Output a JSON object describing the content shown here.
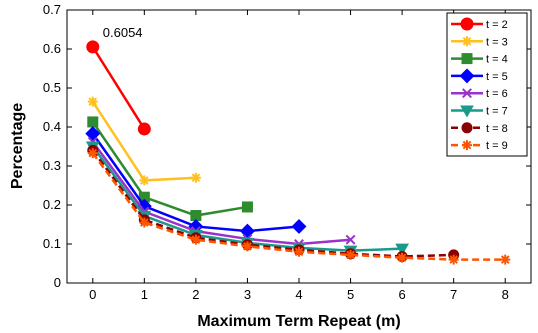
{
  "chart_data": {
    "type": "line",
    "xlabel": "Maximum Term Repeat (m)",
    "ylabel": "Percentage",
    "xlim": [
      -0.5,
      8.5
    ],
    "ylim": [
      0,
      0.7
    ],
    "xticks": [
      0,
      1,
      2,
      3,
      4,
      5,
      6,
      7,
      8
    ],
    "yticks": [
      0,
      0.1,
      0.2,
      0.3,
      0.4,
      0.5,
      0.6,
      0.7
    ],
    "xtick_labels": [
      "0",
      "1",
      "2",
      "3",
      "4",
      "5",
      "6",
      "7",
      "8"
    ],
    "ytick_labels": [
      "0",
      "0.1",
      "0.2",
      "0.3",
      "0.4",
      "0.5",
      "0.6",
      "0.7"
    ],
    "grid": false,
    "legend_position": "top-right",
    "annotation": {
      "text": "0.6054",
      "x": 0,
      "y": 0.6054
    },
    "series": [
      {
        "name": "t = 2",
        "color": "#ff0000",
        "marker": "circle",
        "dash": false,
        "x": [
          0,
          1
        ],
        "y": [
          0.6054,
          0.395
        ]
      },
      {
        "name": "t = 3",
        "color": "#ffc020",
        "marker": "asterisk",
        "dash": false,
        "x": [
          0,
          1,
          2
        ],
        "y": [
          0.465,
          0.263,
          0.27
        ]
      },
      {
        "name": "t = 4",
        "color": "#2e8b2e",
        "marker": "square",
        "dash": false,
        "x": [
          0,
          1,
          2,
          3
        ],
        "y": [
          0.413,
          0.22,
          0.173,
          0.195
        ]
      },
      {
        "name": "t = 5",
        "color": "#0000ff",
        "marker": "diamond",
        "dash": false,
        "x": [
          0,
          1,
          2,
          3,
          4
        ],
        "y": [
          0.383,
          0.197,
          0.145,
          0.133,
          0.145
        ]
      },
      {
        "name": "t = 6",
        "color": "#9933cc",
        "marker": "x",
        "dash": false,
        "x": [
          0,
          1,
          2,
          3,
          4,
          5
        ],
        "y": [
          0.362,
          0.183,
          0.133,
          0.113,
          0.1,
          0.111
        ]
      },
      {
        "name": "t = 7",
        "color": "#1a9a8a",
        "marker": "triangle-down",
        "dash": false,
        "x": [
          0,
          1,
          2,
          3,
          4,
          5,
          6
        ],
        "y": [
          0.35,
          0.172,
          0.123,
          0.103,
          0.09,
          0.083,
          0.088
        ]
      },
      {
        "name": "t = 8",
        "color": "#8b0000",
        "marker": "circle",
        "dash": true,
        "x": [
          0,
          1,
          2,
          3,
          4,
          5,
          6,
          7
        ],
        "y": [
          0.34,
          0.162,
          0.116,
          0.098,
          0.085,
          0.075,
          0.068,
          0.072
        ]
      },
      {
        "name": "t = 9",
        "color": "#ff5500",
        "marker": "asterisk",
        "dash": true,
        "x": [
          0,
          1,
          2,
          3,
          4,
          5,
          6,
          7,
          8
        ],
        "y": [
          0.333,
          0.155,
          0.111,
          0.094,
          0.08,
          0.072,
          0.065,
          0.06,
          0.06
        ]
      }
    ]
  }
}
